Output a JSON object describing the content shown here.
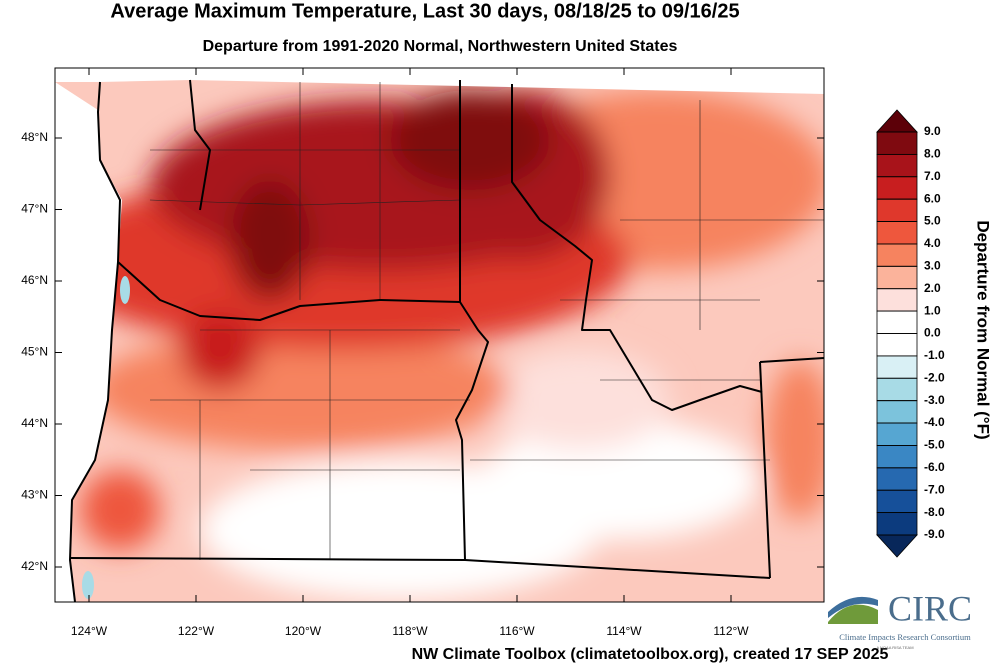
{
  "header": {
    "title": "Average Maximum Temperature, Last 30 days, 08/18/25 to 09/16/25",
    "subtitle": "Departure from 1991-2020 Normal, Northwestern United States"
  },
  "map": {
    "lat_ticks": [
      {
        "value": 48,
        "label": "48°N"
      },
      {
        "value": 47,
        "label": "47°N"
      },
      {
        "value": 46,
        "label": "46°N"
      },
      {
        "value": 45,
        "label": "45°N"
      },
      {
        "value": 44,
        "label": "44°N"
      },
      {
        "value": 43,
        "label": "43°N"
      },
      {
        "value": 42,
        "label": "42°N"
      }
    ],
    "lon_ticks": [
      {
        "value": -124,
        "label": "124°W"
      },
      {
        "value": -122,
        "label": "122°W"
      },
      {
        "value": -120,
        "label": "120°W"
      },
      {
        "value": -118,
        "label": "118°W"
      },
      {
        "value": -116,
        "label": "116°W"
      },
      {
        "value": -114,
        "label": "114°W"
      },
      {
        "value": -112,
        "label": "112°W"
      }
    ]
  },
  "colorbar": {
    "label": "Departure from Normal (°F)",
    "ticks": [
      {
        "value": 9,
        "label": "9.0"
      },
      {
        "value": 8,
        "label": "8.0"
      },
      {
        "value": 7,
        "label": "7.0"
      },
      {
        "value": 6,
        "label": "6.0"
      },
      {
        "value": 5,
        "label": "5.0"
      },
      {
        "value": 4,
        "label": "4.0"
      },
      {
        "value": 3,
        "label": "3.0"
      },
      {
        "value": 2,
        "label": "2.0"
      },
      {
        "value": 1,
        "label": "1.0"
      },
      {
        "value": 0,
        "label": "0.0"
      },
      {
        "value": -1,
        "label": "-1.0"
      },
      {
        "value": -2,
        "label": "-2.0"
      },
      {
        "value": -3,
        "label": "-3.0"
      },
      {
        "value": -4,
        "label": "-4.0"
      },
      {
        "value": -5,
        "label": "-5.0"
      },
      {
        "value": -6,
        "label": "-6.0"
      },
      {
        "value": -7,
        "label": "-7.0"
      },
      {
        "value": -8,
        "label": "-8.0"
      },
      {
        "value": -9,
        "label": "-9.0"
      }
    ],
    "colors": [
      "#5c0008",
      "#7f0a10",
      "#a8131a",
      "#c81e1f",
      "#df382c",
      "#ee573d",
      "#f6835f",
      "#fbb39b",
      "#fde0dc",
      "#ffffff",
      "#ffffff",
      "#d9f0f5",
      "#a8dbe6",
      "#7cc3dc",
      "#56a6d2",
      "#3a87c4",
      "#2669b0",
      "#16509a",
      "#0c3b7e",
      "#08275a"
    ]
  },
  "footer": "NW Climate Toolbox (climatetoolbox.org), created 17 SEP 2025",
  "logo": {
    "name": "CIRC",
    "full_name": "Climate Impacts Research Consortium",
    "tagline": "A NOAA RISA TEAM"
  }
}
